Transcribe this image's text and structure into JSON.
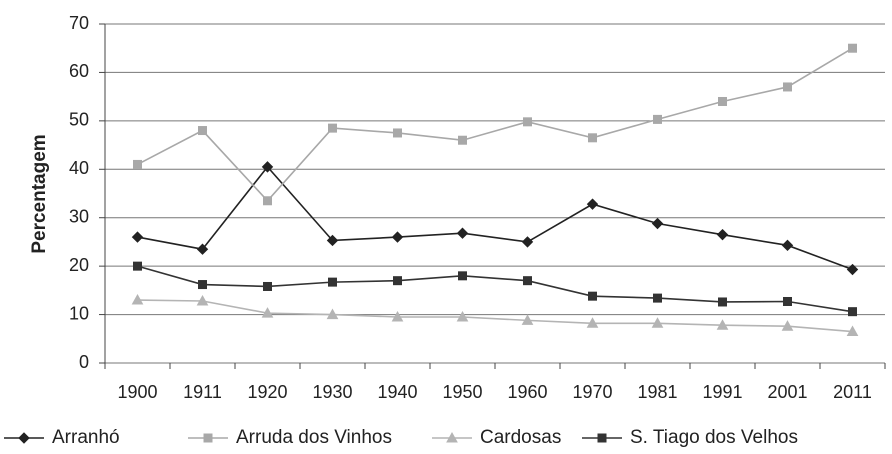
{
  "chart_data": {
    "type": "line",
    "y_label": "Percentagem",
    "categories": [
      "1900",
      "1911",
      "1920",
      "1930",
      "1940",
      "1950",
      "1960",
      "1970",
      "1981",
      "1991",
      "2001",
      "2011"
    ],
    "series": [
      {
        "name": "Arranhó",
        "color": "#222222",
        "marker": "diamond",
        "values": [
          26,
          23.5,
          40.5,
          25.3,
          26,
          26.8,
          25,
          32.8,
          28.8,
          26.5,
          24.3,
          19.3
        ]
      },
      {
        "name": "Arruda dos Vinhos",
        "color": "#a8a8a8",
        "marker": "square",
        "values": [
          41,
          48,
          33.5,
          48.5,
          47.5,
          46,
          49.8,
          46.5,
          50.3,
          54,
          57,
          65
        ]
      },
      {
        "name": "Cardosas",
        "color": "#b4b4b4",
        "marker": "triangle",
        "values": [
          13,
          12.8,
          10.3,
          10,
          9.5,
          9.5,
          8.8,
          8.2,
          8.2,
          7.8,
          7.6,
          6.5
        ]
      },
      {
        "name": "S. Tiago dos Velhos",
        "color": "#333333",
        "marker": "square",
        "values": [
          20,
          16.2,
          15.8,
          16.7,
          17,
          18,
          17,
          13.8,
          13.4,
          12.6,
          12.7,
          10.6
        ]
      }
    ],
    "ylim": [
      0,
      70
    ],
    "yticks": [
      0,
      10,
      20,
      30,
      40,
      50,
      60,
      70
    ],
    "grid": true,
    "legend": "bottom"
  }
}
